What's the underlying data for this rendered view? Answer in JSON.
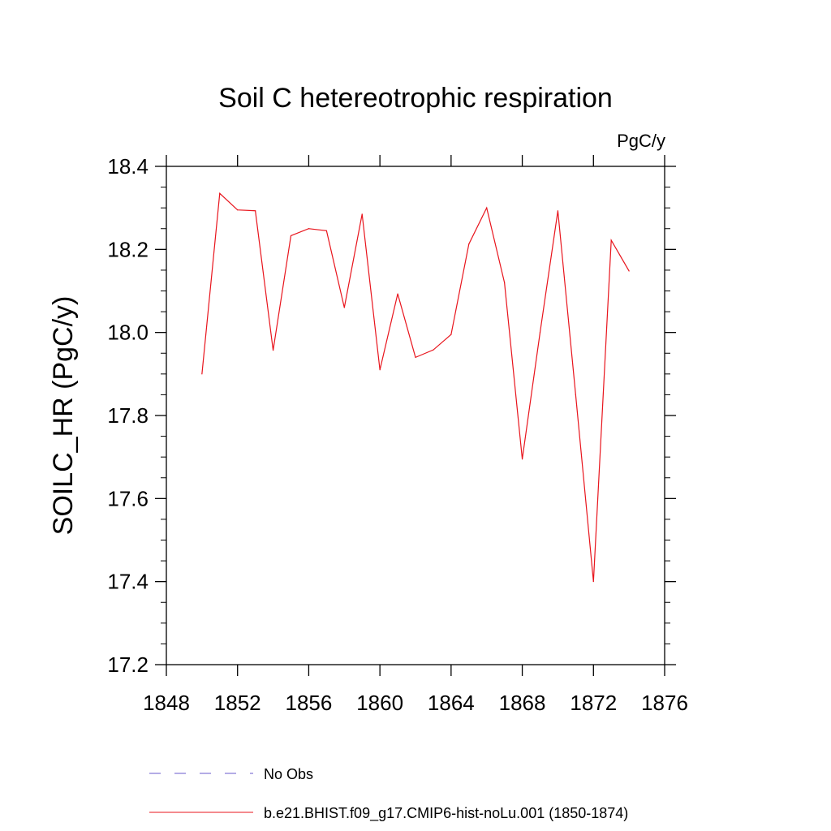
{
  "chart_data": {
    "type": "line",
    "title": "Soil C hetereotrophic respiration",
    "units_label": "PgC/y",
    "ylabel": "SOILC_HR  (PgC/y)",
    "xlabel": "",
    "xlim": [
      1848,
      1876
    ],
    "ylim": [
      17.2,
      18.4
    ],
    "x_ticks": [
      1848,
      1852,
      1856,
      1860,
      1864,
      1868,
      1872,
      1876
    ],
    "y_ticks": [
      17.2,
      17.4,
      17.6,
      17.8,
      18.0,
      18.2,
      18.4
    ],
    "grid": false,
    "series": [
      {
        "name": "b.e21.BHIST.f09_g17.CMIP6-hist-noLu.001 (1850-1874)",
        "color": "#e8141c",
        "style": "solid",
        "x": [
          1850,
          1851,
          1852,
          1853,
          1854,
          1855,
          1856,
          1857,
          1858,
          1859,
          1860,
          1861,
          1862,
          1863,
          1864,
          1865,
          1866,
          1867,
          1868,
          1869,
          1870,
          1871,
          1872,
          1873,
          1874
        ],
        "y": [
          17.9,
          18.335,
          18.295,
          18.293,
          17.957,
          18.233,
          18.25,
          18.245,
          18.06,
          18.285,
          17.91,
          18.093,
          17.94,
          17.958,
          17.995,
          18.213,
          18.3,
          18.12,
          17.695,
          18.0,
          18.293,
          17.85,
          17.4,
          18.222,
          18.148
        ]
      }
    ],
    "legend": {
      "placement": "bottom",
      "entries": [
        {
          "label": "No Obs",
          "color": "#6a5acd",
          "style": "dashed"
        },
        {
          "label": "b.e21.BHIST.f09_g17.CMIP6-hist-noLu.001 (1850-1874)",
          "color": "#e8141c",
          "style": "solid"
        }
      ]
    }
  }
}
